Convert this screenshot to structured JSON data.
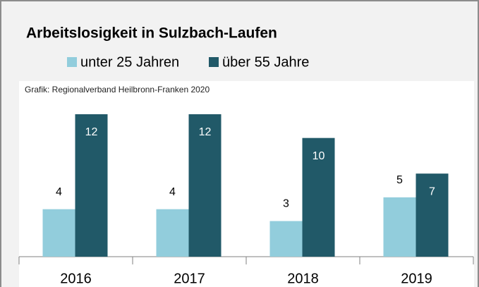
{
  "chart_data": {
    "type": "bar",
    "title": "Arbeitslosigkeit in Sulzbach-Laufen",
    "source": "Grafik: Regionalverband Heilbronn-Franken 2020",
    "categories": [
      "2016",
      "2017",
      "2018",
      "2019"
    ],
    "series": [
      {
        "name": "unter 25 Jahren",
        "color": "#92cddc",
        "values": [
          4,
          4,
          3,
          5
        ]
      },
      {
        "name": "über 55 Jahre",
        "color": "#215968",
        "values": [
          12,
          12,
          10,
          7
        ]
      }
    ]
  }
}
